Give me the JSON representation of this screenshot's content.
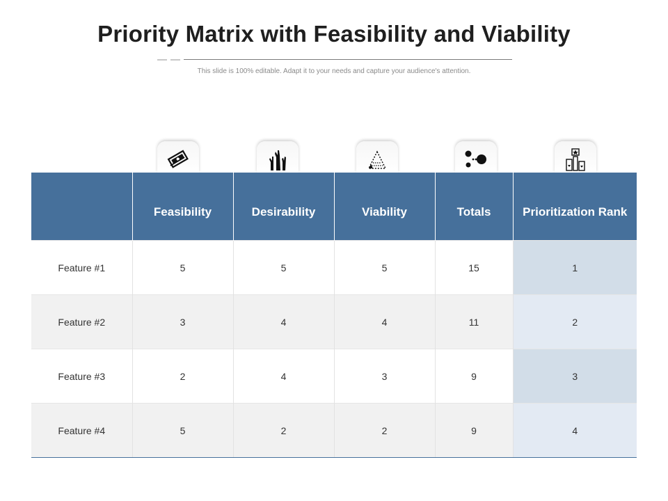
{
  "header": {
    "title": "Priority Matrix with Feasibility and Viability",
    "subtitle": "This slide is 100% editable. Adapt it to your needs and capture your audience's attention."
  },
  "colors": {
    "header_blue": "#46709b",
    "rank_shade_dark": "#d2dde8",
    "rank_shade_light": "#e3eaf3",
    "row_shade": "#f1f1f1"
  },
  "icons": [
    "cash-icon",
    "raised-hands-icon",
    "pyramid-icon",
    "bubble-icon",
    "podium-star-icon"
  ],
  "table": {
    "corner_label": "",
    "columns": [
      "Feasibility",
      "Desirability",
      "Viability",
      "Totals",
      "Prioritization Rank"
    ],
    "rows": [
      {
        "label": "Feature #1",
        "values": [
          "5",
          "5",
          "5",
          "15",
          "1"
        ]
      },
      {
        "label": "Feature #2",
        "values": [
          "3",
          "4",
          "4",
          "11",
          "2"
        ]
      },
      {
        "label": "Feature #3",
        "values": [
          "2",
          "4",
          "3",
          "9",
          "3"
        ]
      },
      {
        "label": "Feature #4",
        "values": [
          "5",
          "2",
          "2",
          "9",
          "4"
        ]
      }
    ]
  }
}
